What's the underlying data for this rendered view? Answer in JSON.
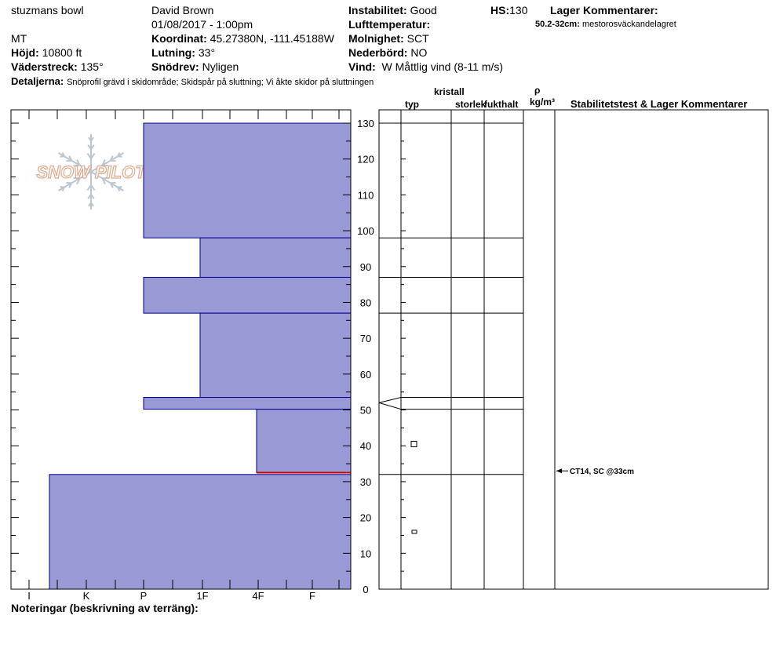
{
  "header": {
    "location": "stuzmans bowl",
    "observer": "David Brown",
    "datetime": "01/08/2017 - 1:00pm",
    "state": "MT",
    "coord_label": "Koordinat:",
    "coord_value": "45.27380N, -111.45188W",
    "elev_label": "Höjd:",
    "elev_value": "10800 ft",
    "slope_label": "Lutning:",
    "slope_value": "33°",
    "aspect_label": "Väderstreck:",
    "aspect_value": "135°",
    "drift_label": "Snödrev:",
    "drift_value": "Nyligen",
    "instab_label": "Instabilitet:",
    "instab_value": "Good",
    "hs_label": "HS:",
    "hs_value": "130",
    "layer_comments_label": "Lager Kommentarer:",
    "layer_comment_range": "50.2-32cm:",
    "layer_comment_text": "mestorosväckandelagret",
    "airtemp_label": "Lufttemperatur:",
    "airtemp_value": "",
    "cloud_label": "Molnighet:",
    "cloud_value": "SCT",
    "precip_label": "Nederbörd:",
    "precip_value": "NO",
    "wind_label": "Vind:",
    "wind_value": "W Måttlig vind (8-11 m/s)",
    "details_label": "Detaljerna:",
    "details_value": "Snöprofil grävd i skidområde;  Skidspår på sluttning;  Vi åkte skidor på sluttningen",
    "notes_label": "Noteringar (beskrivning av terräng):"
  },
  "columns": {
    "crystal_label": "kristall",
    "type_label": "typ",
    "size_label": "storlek",
    "moisture_label": "fukthalt",
    "rho_label": "ρ",
    "density_unit": "kg/m³",
    "stability_label": "Stabilitetstest & Lager Kommentarer"
  },
  "logo_text": "SNOW PILOT",
  "test_result": "CT14, SC @33cm",
  "colors": {
    "fill": "#9999d6",
    "edge": "#00008b",
    "weak": "#cc0000"
  },
  "chart_data": {
    "type": "bar",
    "orientation": "horizontal",
    "y_range": [
      0,
      130
    ],
    "y_ticks": [
      0,
      10,
      20,
      30,
      40,
      50,
      60,
      70,
      80,
      90,
      100,
      110,
      120,
      130
    ],
    "x_categories": [
      "I",
      "K",
      "P",
      "1F",
      "4F",
      "F"
    ],
    "layers": [
      {
        "top": 130,
        "bottom": 98,
        "hardness": "P"
      },
      {
        "top": 98,
        "bottom": 87,
        "hardness": "1F-"
      },
      {
        "top": 87,
        "bottom": 77,
        "hardness": "P"
      },
      {
        "top": 77,
        "bottom": 53.5,
        "hardness": "1F-"
      },
      {
        "top": 53.5,
        "bottom": 50.2,
        "hardness": "P"
      },
      {
        "top": 50.2,
        "bottom": 32.5,
        "hardness": "4F-"
      },
      {
        "top": 32,
        "bottom": 0,
        "hardness": "I-K"
      }
    ],
    "weak_layer_cm": 32.5,
    "grain_symbols": [
      {
        "height": 40.5,
        "shape": "square"
      },
      {
        "height": 16,
        "shape": "rect"
      }
    ],
    "test_height_cm": 33
  }
}
